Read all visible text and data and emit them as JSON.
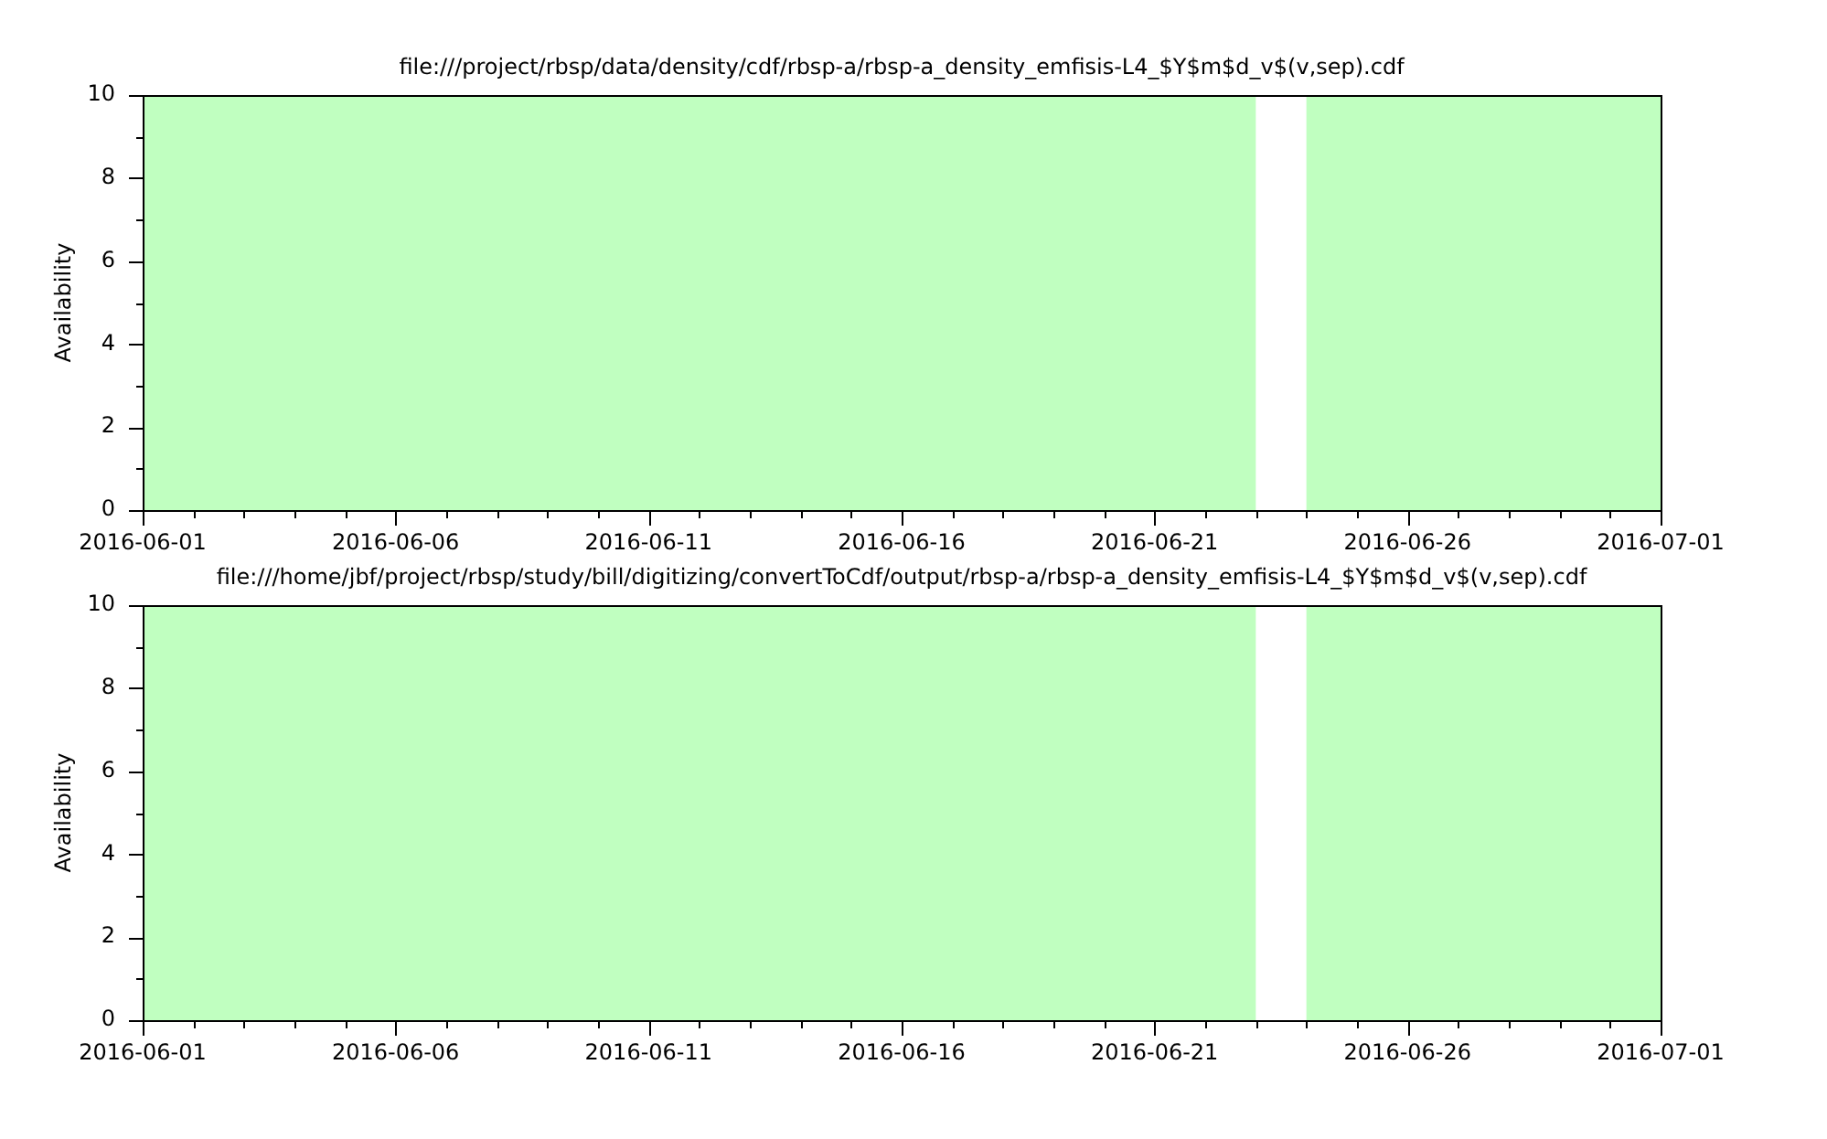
{
  "chart_data": [
    {
      "type": "bar",
      "title": "file:///project/rbsp/data/density/cdf/rbsp-a/rbsp-a_density_emfisis-L4_$Y$m$d_v$(v,sep).cdf",
      "ylabel": "Availability",
      "bands": [
        {
          "axis": "x",
          "from": "2016-06-01",
          "to": "2016-06-23",
          "color": "#c0ffc0"
        },
        {
          "axis": "x",
          "from": "2016-06-24",
          "to": "2016-07-01",
          "color": "#c0ffc0"
        }
      ],
      "xlim": [
        "2016-06-01",
        "2016-07-01"
      ],
      "ylim": [
        0,
        10
      ],
      "xticks": [
        "2016-06-01",
        {
          "value": "2016-06-02",
          "label": null
        },
        {
          "value": "2016-06-03",
          "label": null
        },
        {
          "value": "2016-06-04",
          "label": null
        },
        {
          "value": "2016-06-05",
          "label": null
        },
        "2016-06-06",
        {
          "value": "2016-06-07",
          "label": null
        },
        {
          "value": "2016-06-08",
          "label": null
        },
        {
          "value": "2016-06-09",
          "label": null
        },
        {
          "value": "2016-06-10",
          "label": null
        },
        "2016-06-11",
        {
          "value": "2016-06-12",
          "label": null
        },
        {
          "value": "2016-06-13",
          "label": null
        },
        {
          "value": "2016-06-14",
          "label": null
        },
        {
          "value": "2016-06-15",
          "label": null
        },
        "2016-06-16",
        {
          "value": "2016-06-17",
          "label": null
        },
        {
          "value": "2016-06-18",
          "label": null
        },
        {
          "value": "2016-06-19",
          "label": null
        },
        {
          "value": "2016-06-20",
          "label": null
        },
        "2016-06-21",
        {
          "value": "2016-06-22",
          "label": null
        },
        {
          "value": "2016-06-23",
          "label": null
        },
        {
          "value": "2016-06-24",
          "label": null
        },
        {
          "value": "2016-06-25",
          "label": null
        },
        "2016-06-26",
        {
          "value": "2016-06-27",
          "label": null
        },
        {
          "value": "2016-06-28",
          "label": null
        },
        {
          "value": "2016-06-29",
          "label": null
        },
        {
          "value": "2016-06-30",
          "label": null
        },
        "2016-07-01"
      ],
      "yticks": [
        0,
        {
          "value": 1,
          "label": null
        },
        2,
        {
          "value": 3,
          "label": null
        },
        4,
        {
          "value": 5,
          "label": null
        },
        6,
        {
          "value": 7,
          "label": null
        },
        8,
        {
          "value": 9,
          "label": null
        },
        10
      ]
    },
    {
      "type": "bar",
      "title": "file:///home/jbf/project/rbsp/study/bill/digitizing/convertToCdf/output/rbsp-a/rbsp-a_density_emfisis-L4_$Y$m$d_v$(v,sep).cdf",
      "ylabel": "Availability",
      "bands": [
        {
          "axis": "x",
          "from": "2016-06-01",
          "to": "2016-06-23",
          "color": "#c0ffc0"
        },
        {
          "axis": "x",
          "from": "2016-06-24",
          "to": "2016-07-01",
          "color": "#c0ffc0"
        }
      ],
      "xlim": [
        "2016-06-01",
        "2016-07-01"
      ],
      "ylim": [
        0,
        10
      ],
      "xticks": [
        "2016-06-01",
        {
          "value": "2016-06-02",
          "label": null
        },
        {
          "value": "2016-06-03",
          "label": null
        },
        {
          "value": "2016-06-04",
          "label": null
        },
        {
          "value": "2016-06-05",
          "label": null
        },
        "2016-06-06",
        {
          "value": "2016-06-07",
          "label": null
        },
        {
          "value": "2016-06-08",
          "label": null
        },
        {
          "value": "2016-06-09",
          "label": null
        },
        {
          "value": "2016-06-10",
          "label": null
        },
        "2016-06-11",
        {
          "value": "2016-06-12",
          "label": null
        },
        {
          "value": "2016-06-13",
          "label": null
        },
        {
          "value": "2016-06-14",
          "label": null
        },
        {
          "value": "2016-06-15",
          "label": null
        },
        "2016-06-16",
        {
          "value": "2016-06-17",
          "label": null
        },
        {
          "value": "2016-06-18",
          "label": null
        },
        {
          "value": "2016-06-19",
          "label": null
        },
        {
          "value": "2016-06-20",
          "label": null
        },
        "2016-06-21",
        {
          "value": "2016-06-22",
          "label": null
        },
        {
          "value": "2016-06-23",
          "label": null
        },
        {
          "value": "2016-06-24",
          "label": null
        },
        {
          "value": "2016-06-25",
          "label": null
        },
        "2016-06-26",
        {
          "value": "2016-06-27",
          "label": null
        },
        {
          "value": "2016-06-28",
          "label": null
        },
        {
          "value": "2016-06-29",
          "label": null
        },
        {
          "value": "2016-06-30",
          "label": null
        },
        "2016-07-01"
      ],
      "yticks": [
        0,
        {
          "value": 1,
          "label": null
        },
        2,
        {
          "value": 3,
          "label": null
        },
        4,
        {
          "value": 5,
          "label": null
        },
        6,
        {
          "value": 7,
          "label": null
        },
        8,
        {
          "value": 9,
          "label": null
        },
        10
      ]
    }
  ]
}
